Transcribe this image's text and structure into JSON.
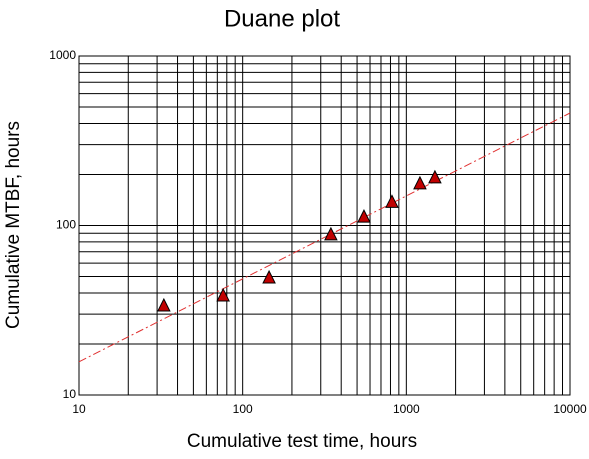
{
  "chart_data": {
    "type": "scatter",
    "title": "Duane plot",
    "x_label": "Cumulative test time, hours",
    "y_label": "Cumulative MTBF, hours",
    "log_x": true,
    "log_y": true,
    "grid": true,
    "xlim": [
      10,
      10000
    ],
    "ylim": [
      10,
      1000
    ],
    "xticks": [
      10,
      100,
      1000,
      10000
    ],
    "yticks": [
      10,
      100,
      1000
    ],
    "xminorticks": [
      20,
      30,
      40,
      50,
      60,
      70,
      80,
      90,
      200,
      300,
      400,
      500,
      600,
      700,
      800,
      900,
      2000,
      3000,
      4000,
      5000,
      6000,
      7000,
      8000,
      9000
    ],
    "yminorticks": [
      20,
      30,
      40,
      50,
      60,
      70,
      80,
      90,
      200,
      300,
      400,
      500,
      600,
      700,
      800,
      900
    ],
    "x": [
      33,
      76,
      145,
      346,
      551,
      817,
      1211,
      1495
    ],
    "values": [
      33.5,
      38.4,
      49,
      88,
      112,
      137,
      176,
      191
    ],
    "color": "#c00000",
    "trend_line": {
      "x": [
        10,
        10000
      ],
      "y": [
        15.7,
        461
      ],
      "color": "#e03030"
    }
  }
}
